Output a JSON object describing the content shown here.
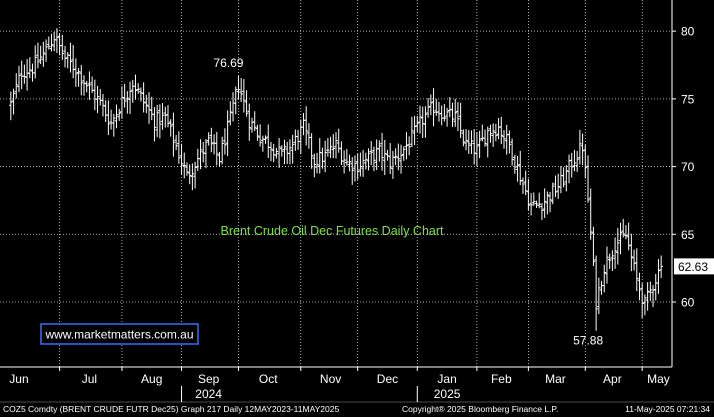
{
  "chart_data": {
    "type": "ohlc",
    "title": "Brent Crude Oil Dec Futures Daily Chart",
    "ylim": [
      55.2,
      82.3
    ],
    "yticks": [
      60,
      65,
      70,
      75,
      80
    ],
    "grid": true,
    "month_labels": [
      "Jun",
      "Jul",
      "Aug",
      "Sep",
      "Oct",
      "Nov",
      "Dec",
      "Jan",
      "Feb",
      "Mar",
      "Apr",
      "May"
    ],
    "year_labels": [
      "2024",
      "2025"
    ],
    "anchors": [
      {
        "d": 0,
        "v": 74.6
      },
      {
        "d": 4,
        "v": 77.0
      },
      {
        "d": 8,
        "v": 77.3
      },
      {
        "d": 12,
        "v": 78.3
      },
      {
        "d": 16,
        "v": 79.6
      },
      {
        "d": 20,
        "v": 78.0
      },
      {
        "d": 24,
        "v": 77.2
      },
      {
        "d": 29,
        "v": 75.8
      },
      {
        "d": 33,
        "v": 74.7
      },
      {
        "d": 37,
        "v": 73.2
      },
      {
        "d": 41,
        "v": 74.8
      },
      {
        "d": 45,
        "v": 76.2
      },
      {
        "d": 49,
        "v": 74.8
      },
      {
        "d": 53,
        "v": 73.4
      },
      {
        "d": 57,
        "v": 73.6
      },
      {
        "d": 61,
        "v": 71.5
      },
      {
        "d": 65,
        "v": 69.3
      },
      {
        "d": 69,
        "v": 70.6
      },
      {
        "d": 73,
        "v": 71.8
      },
      {
        "d": 77,
        "v": 70.6
      },
      {
        "d": 81,
        "v": 73.5
      },
      {
        "d": 84,
        "v": 76.1
      },
      {
        "d": 88,
        "v": 73.4
      },
      {
        "d": 92,
        "v": 72.2
      },
      {
        "d": 96,
        "v": 71.6
      },
      {
        "d": 100,
        "v": 70.8
      },
      {
        "d": 104,
        "v": 71.6
      },
      {
        "d": 108,
        "v": 72.9
      },
      {
        "d": 112,
        "v": 70.4
      },
      {
        "d": 116,
        "v": 70.8
      },
      {
        "d": 120,
        "v": 71.6
      },
      {
        "d": 124,
        "v": 70.3
      },
      {
        "d": 128,
        "v": 70.1
      },
      {
        "d": 132,
        "v": 70.6
      },
      {
        "d": 136,
        "v": 71.1
      },
      {
        "d": 140,
        "v": 70.3
      },
      {
        "d": 144,
        "v": 71.0
      },
      {
        "d": 148,
        "v": 72.1
      },
      {
        "d": 152,
        "v": 73.5
      },
      {
        "d": 156,
        "v": 74.4
      },
      {
        "d": 160,
        "v": 73.9
      },
      {
        "d": 164,
        "v": 73.6
      },
      {
        "d": 168,
        "v": 71.6
      },
      {
        "d": 172,
        "v": 71.2
      },
      {
        "d": 176,
        "v": 72.6
      },
      {
        "d": 180,
        "v": 72.9
      },
      {
        "d": 184,
        "v": 71.6
      },
      {
        "d": 188,
        "v": 69.3
      },
      {
        "d": 192,
        "v": 67.1
      },
      {
        "d": 196,
        "v": 67.3
      },
      {
        "d": 200,
        "v": 68.1
      },
      {
        "d": 204,
        "v": 69.1
      },
      {
        "d": 207,
        "v": 70.3
      },
      {
        "d": 211,
        "v": 71.5
      },
      {
        "d": 213,
        "v": 67.6
      },
      {
        "d": 216,
        "v": 60.0
      },
      {
        "d": 219,
        "v": 62.6
      },
      {
        "d": 223,
        "v": 64.3
      },
      {
        "d": 227,
        "v": 64.9
      },
      {
        "d": 231,
        "v": 61.6
      },
      {
        "d": 234,
        "v": 59.8
      },
      {
        "d": 237,
        "v": 61.3
      },
      {
        "d": 240,
        "v": 62.63
      }
    ],
    "annotations": [
      {
        "label": "76.69",
        "value": 76.69,
        "d": 84,
        "kind": "high"
      },
      {
        "label": "57.88",
        "value": 57.88,
        "d": 216,
        "kind": "low"
      }
    ],
    "last_value": 62.63,
    "last_value_label": "62.63"
  },
  "watermark": "www.marketmatters.com.au",
  "footer": {
    "left": "COZ5 Comdty (BRENT CRUDE FUTR Dec25) Graph 217 Daily 12MAY2023-11MAY2025",
    "center": "Copyright® 2025 Bloomberg Finance L.P.",
    "right": "11-May-2025 07:21:34"
  },
  "colors": {
    "background": "#000000",
    "bars": "#ffffff",
    "grid": "#ffffff",
    "title": "#7ee04a",
    "watermark_border": "#3a6df0",
    "last_label_bg": "#ffffff"
  }
}
